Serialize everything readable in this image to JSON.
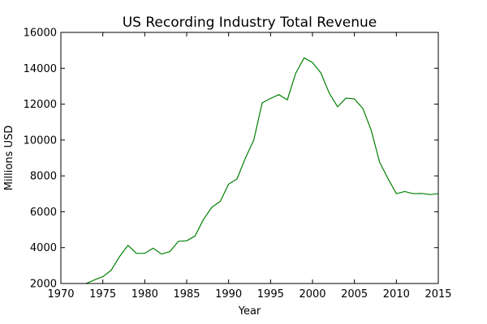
{
  "chart_data": {
    "type": "line",
    "title": "US Recording Industry Total Revenue",
    "xlabel": "Year",
    "ylabel": "Millions USD",
    "xlim": [
      1970,
      2015
    ],
    "ylim": [
      2000,
      16000
    ],
    "xticks": [
      1970,
      1975,
      1980,
      1985,
      1990,
      1995,
      2000,
      2005,
      2010,
      2015
    ],
    "yticks": [
      2000,
      4000,
      6000,
      8000,
      10000,
      12000,
      14000,
      16000
    ],
    "grid": false,
    "series": [
      {
        "color": "#008000",
        "x": [
          1973,
          1974,
          1975,
          1976,
          1977,
          1978,
          1979,
          1980,
          1981,
          1982,
          1983,
          1984,
          1985,
          1986,
          1987,
          1988,
          1989,
          1990,
          1991,
          1992,
          1993,
          1994,
          1995,
          1996,
          1997,
          1998,
          1999,
          2000,
          2001,
          2002,
          2003,
          2004,
          2005,
          2006,
          2007,
          2008,
          2009,
          2010,
          2011,
          2012,
          2013,
          2014,
          2015
        ],
        "y": [
          2000,
          2200,
          2380,
          2740,
          3500,
          4130,
          3680,
          3680,
          3970,
          3640,
          3780,
          4350,
          4380,
          4650,
          5570,
          6250,
          6580,
          7540,
          7830,
          8990,
          10000,
          12070,
          12320,
          12530,
          12240,
          13720,
          14580,
          14320,
          13740,
          12610,
          11850,
          12340,
          12290,
          11760,
          10550,
          8770,
          7850,
          7010,
          7130,
          7010,
          7020,
          6960,
          7010
        ]
      }
    ]
  }
}
